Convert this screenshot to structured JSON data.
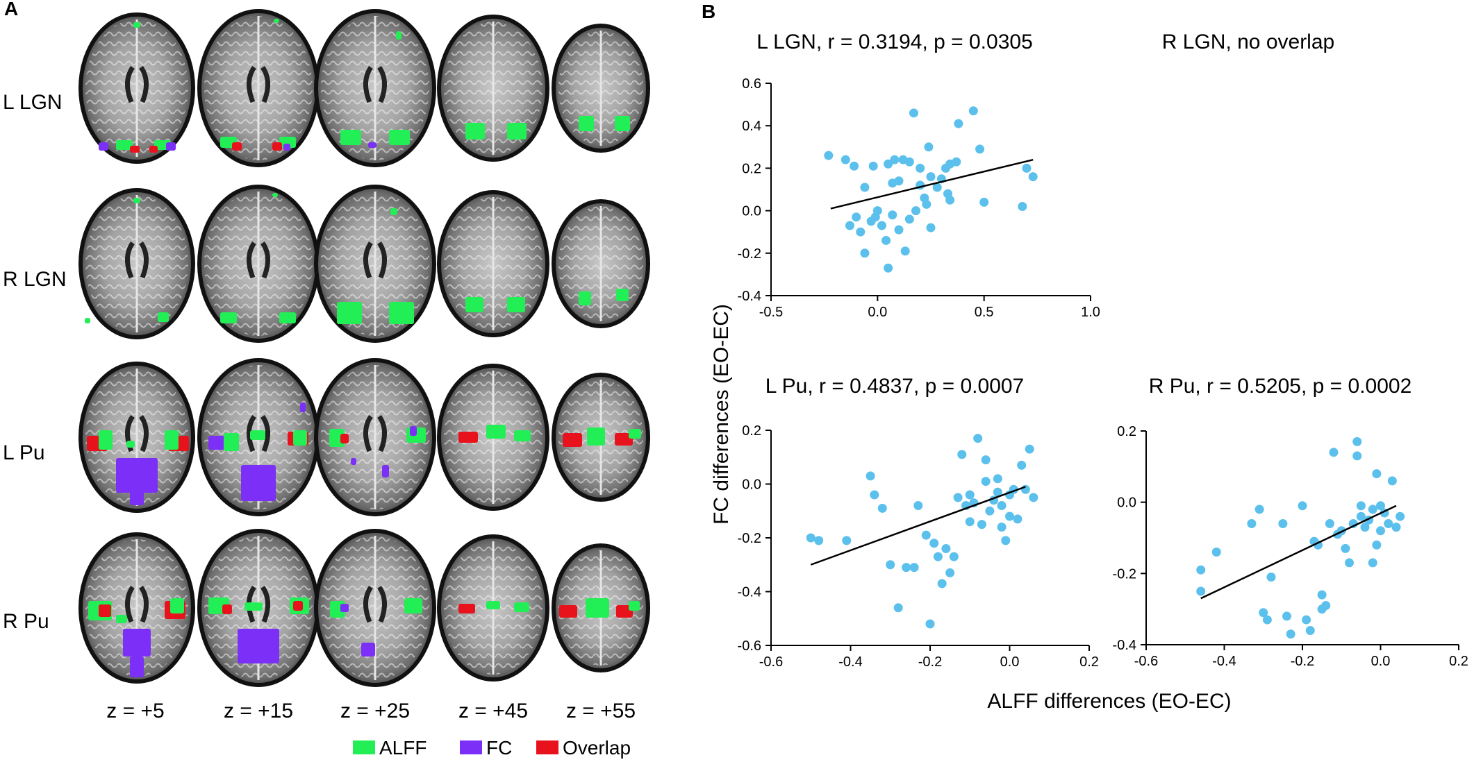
{
  "panel_a": {
    "label": "A",
    "rows": [
      "L LGN",
      "R LGN",
      "L Pu",
      "R Pu"
    ],
    "slices": [
      "z = +5",
      "z = +15",
      "z = +25",
      "z = +45",
      "z = +55"
    ],
    "legend": [
      {
        "label": "ALFF",
        "color": "#22ee55"
      },
      {
        "label": "FC",
        "color": "#7b2ff7"
      },
      {
        "label": "Overlap",
        "color": "#e8121c"
      }
    ]
  },
  "panel_b": {
    "label": "B",
    "ylabel": "FC differences (EO-EC)",
    "xlabel": "ALFF differences (EO-EC)",
    "no_overlap_title": "R LGN, no overlap"
  },
  "colors": {
    "point": "#5bc0eb",
    "line": "#000000",
    "axis": "#000000"
  },
  "chart_data": [
    {
      "type": "scatter",
      "title": "L LGN, r = 0.3194, p = 0.0305",
      "xlim": [
        -0.5,
        1.0
      ],
      "ylim": [
        -0.4,
        0.6
      ],
      "xticks": [
        "-0.5",
        "0.0",
        "0.5",
        "1.0"
      ],
      "yticks": [
        "-0.4",
        "-0.2",
        "0.0",
        "0.2",
        "0.4",
        "0.6"
      ],
      "fit": [
        [
          -0.22,
          0.01
        ],
        [
          0.73,
          0.24
        ]
      ],
      "points": [
        [
          -0.23,
          0.26
        ],
        [
          -0.15,
          0.24
        ],
        [
          -0.11,
          0.21
        ],
        [
          -0.06,
          0.11
        ],
        [
          -0.02,
          0.21
        ],
        [
          0.05,
          0.22
        ],
        [
          0.08,
          0.24
        ],
        [
          0.12,
          0.24
        ],
        [
          0.15,
          0.23
        ],
        [
          0.17,
          0.46
        ],
        [
          0.2,
          0.2
        ],
        [
          0.24,
          0.3
        ],
        [
          0.25,
          0.16
        ],
        [
          0.3,
          0.15
        ],
        [
          0.32,
          0.2
        ],
        [
          0.34,
          0.22
        ],
        [
          0.37,
          0.23
        ],
        [
          0.38,
          0.41
        ],
        [
          0.45,
          0.47
        ],
        [
          0.48,
          0.29
        ],
        [
          0.5,
          0.04
        ],
        [
          0.7,
          0.2
        ],
        [
          0.73,
          0.16
        ],
        [
          0.68,
          0.02
        ],
        [
          -0.13,
          -0.07
        ],
        [
          -0.1,
          -0.03
        ],
        [
          -0.08,
          -0.1
        ],
        [
          -0.06,
          -0.2
        ],
        [
          -0.03,
          -0.05
        ],
        [
          -0.01,
          -0.03
        ],
        [
          0.0,
          0.0
        ],
        [
          0.02,
          -0.07
        ],
        [
          0.04,
          -0.14
        ],
        [
          0.05,
          -0.27
        ],
        [
          0.07,
          -0.02
        ],
        [
          0.1,
          -0.09
        ],
        [
          0.13,
          -0.19
        ],
        [
          0.15,
          -0.04
        ],
        [
          0.18,
          0.0
        ],
        [
          0.22,
          0.06
        ],
        [
          0.23,
          0.03
        ],
        [
          0.25,
          -0.08
        ],
        [
          0.28,
          0.11
        ],
        [
          0.33,
          0.08
        ],
        [
          0.34,
          0.05
        ],
        [
          0.07,
          0.13
        ],
        [
          0.1,
          0.14
        ],
        [
          0.2,
          0.12
        ]
      ]
    },
    {
      "type": "scatter",
      "title": "L Pu, r = 0.4837, p = 0.0007",
      "xlim": [
        -0.6,
        0.2
      ],
      "ylim": [
        -0.6,
        0.2
      ],
      "xticks": [
        "-0.6",
        "-0.4",
        "-0.2",
        "0.0",
        "0.2"
      ],
      "yticks": [
        "-0.6",
        "-0.4",
        "-0.2",
        "0.0",
        "0.2"
      ],
      "fit": [
        [
          -0.5,
          -0.3
        ],
        [
          0.04,
          -0.01
        ]
      ],
      "points": [
        [
          -0.5,
          -0.2
        ],
        [
          -0.48,
          -0.21
        ],
        [
          -0.41,
          -0.21
        ],
        [
          -0.35,
          0.03
        ],
        [
          -0.34,
          -0.04
        ],
        [
          -0.32,
          -0.09
        ],
        [
          -0.3,
          -0.3
        ],
        [
          -0.28,
          -0.46
        ],
        [
          -0.26,
          -0.31
        ],
        [
          -0.24,
          -0.31
        ],
        [
          -0.23,
          -0.08
        ],
        [
          -0.21,
          -0.19
        ],
        [
          -0.2,
          -0.52
        ],
        [
          -0.19,
          -0.22
        ],
        [
          -0.18,
          -0.27
        ],
        [
          -0.17,
          -0.37
        ],
        [
          -0.16,
          -0.24
        ],
        [
          -0.15,
          -0.33
        ],
        [
          -0.14,
          -0.27
        ],
        [
          -0.13,
          -0.05
        ],
        [
          -0.12,
          0.11
        ],
        [
          -0.11,
          -0.08
        ],
        [
          -0.1,
          -0.04
        ],
        [
          -0.09,
          -0.07
        ],
        [
          -0.08,
          0.17
        ],
        [
          -0.07,
          -0.15
        ],
        [
          -0.06,
          0.09
        ],
        [
          -0.05,
          -0.1
        ],
        [
          -0.04,
          -0.06
        ],
        [
          -0.03,
          -0.03
        ],
        [
          -0.02,
          -0.08
        ],
        [
          -0.01,
          -0.21
        ],
        [
          0.0,
          -0.04
        ],
        [
          0.01,
          -0.02
        ],
        [
          0.02,
          -0.13
        ],
        [
          0.03,
          0.07
        ],
        [
          0.04,
          -0.02
        ],
        [
          0.05,
          0.13
        ],
        [
          0.06,
          -0.05
        ],
        [
          -0.06,
          0.01
        ],
        [
          -0.03,
          0.02
        ],
        [
          0.0,
          -0.12
        ],
        [
          -0.1,
          -0.14
        ],
        [
          -0.02,
          -0.16
        ]
      ]
    },
    {
      "type": "scatter",
      "title": "R Pu, r = 0.5205, p = 0.0002",
      "xlim": [
        -0.6,
        0.2
      ],
      "ylim": [
        -0.4,
        0.2
      ],
      "xticks": [
        "-0.6",
        "-0.4",
        "-0.2",
        "0.0",
        "0.2"
      ],
      "yticks": [
        "-0.4",
        "-0.2",
        "0.0",
        "0.2"
      ],
      "fit": [
        [
          -0.46,
          -0.27
        ],
        [
          0.04,
          -0.01
        ]
      ],
      "points": [
        [
          -0.46,
          -0.19
        ],
        [
          -0.46,
          -0.25
        ],
        [
          -0.42,
          -0.14
        ],
        [
          -0.33,
          -0.06
        ],
        [
          -0.31,
          -0.02
        ],
        [
          -0.3,
          -0.31
        ],
        [
          -0.29,
          -0.33
        ],
        [
          -0.28,
          -0.21
        ],
        [
          -0.25,
          -0.06
        ],
        [
          -0.24,
          -0.32
        ],
        [
          -0.23,
          -0.37
        ],
        [
          -0.2,
          -0.01
        ],
        [
          -0.19,
          -0.33
        ],
        [
          -0.18,
          -0.36
        ],
        [
          -0.17,
          -0.11
        ],
        [
          -0.16,
          -0.12
        ],
        [
          -0.15,
          -0.26
        ],
        [
          -0.15,
          -0.3
        ],
        [
          -0.14,
          -0.29
        ],
        [
          -0.13,
          -0.06
        ],
        [
          -0.12,
          0.14
        ],
        [
          -0.11,
          -0.09
        ],
        [
          -0.1,
          -0.08
        ],
        [
          -0.09,
          -0.13
        ],
        [
          -0.08,
          -0.17
        ],
        [
          -0.07,
          -0.06
        ],
        [
          -0.06,
          0.17
        ],
        [
          -0.06,
          0.13
        ],
        [
          -0.05,
          -0.04
        ],
        [
          -0.04,
          -0.07
        ],
        [
          -0.03,
          -0.05
        ],
        [
          -0.02,
          -0.02
        ],
        [
          -0.01,
          0.08
        ],
        [
          0.0,
          -0.01
        ],
        [
          0.01,
          -0.03
        ],
        [
          0.02,
          -0.06
        ],
        [
          0.03,
          0.06
        ],
        [
          0.04,
          -0.07
        ],
        [
          0.05,
          -0.04
        ],
        [
          -0.02,
          -0.17
        ],
        [
          -0.01,
          -0.12
        ],
        [
          -0.05,
          -0.01
        ],
        [
          0.0,
          -0.08
        ]
      ]
    }
  ]
}
